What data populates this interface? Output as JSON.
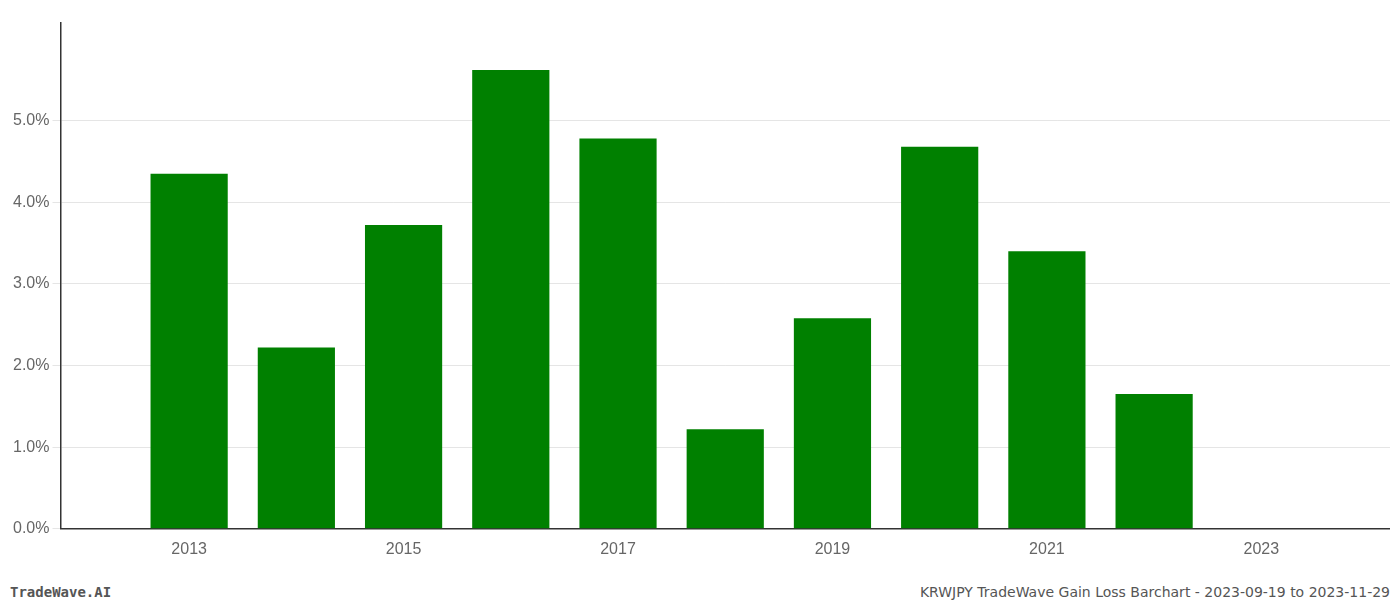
{
  "chart_data": {
    "type": "bar",
    "x": [
      2013,
      2014,
      2015,
      2016,
      2017,
      2018,
      2019,
      2020,
      2021,
      2022,
      2023
    ],
    "values": [
      0.0435,
      0.0222,
      0.0372,
      0.0562,
      0.0478,
      0.0122,
      0.0258,
      0.0468,
      0.034,
      0.0165,
      null
    ],
    "color": "#008000",
    "xlim": [
      2011.8,
      2024.2
    ],
    "xticks": [
      2013,
      2015,
      2017,
      2019,
      2021,
      2023
    ],
    "ylim": [
      0.0,
      0.062
    ],
    "yticks": [
      {
        "value": 0.0,
        "label": "0.0%"
      },
      {
        "value": 0.01,
        "label": "1.0%"
      },
      {
        "value": 0.02,
        "label": "2.0%"
      },
      {
        "value": 0.03,
        "label": "3.0%"
      },
      {
        "value": 0.04,
        "label": "4.0%"
      },
      {
        "value": 0.05,
        "label": "5.0%"
      }
    ],
    "grid": true,
    "annotations": [
      "TradeWave.AI",
      "KRWJPY TradeWave Gain Loss Barchart - 2023-09-19 to 2023-11-29"
    ]
  }
}
